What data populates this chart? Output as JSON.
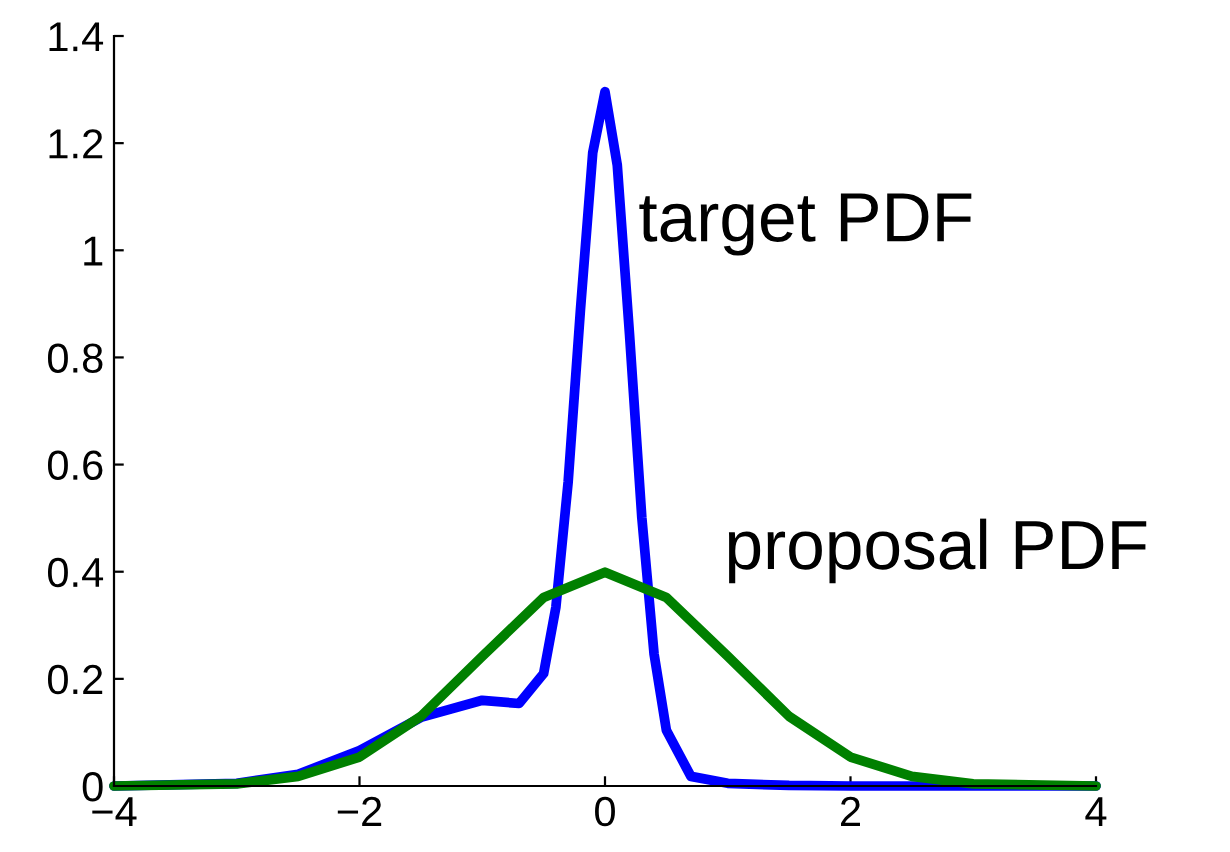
{
  "chart_data": {
    "type": "line",
    "xlim": [
      -4,
      4
    ],
    "ylim": [
      0,
      1.4
    ],
    "xticks": [
      {
        "value": -4,
        "label": "−4"
      },
      {
        "value": -2,
        "label": "−2"
      },
      0,
      2,
      4
    ],
    "yticks": [
      0,
      0.2,
      0.4,
      0.6,
      0.8,
      1,
      1.2,
      1.4
    ],
    "grid": false,
    "legend": false,
    "marker": "none",
    "line_style": "solid",
    "series": [
      {
        "name": "target PDF",
        "color": "#0000ff",
        "x": [
          -4,
          -3,
          -2.5,
          -2,
          -1.5,
          -1,
          -0.7,
          -0.5,
          -0.4,
          -0.3,
          -0.2,
          -0.1,
          0,
          0.1,
          0.2,
          0.3,
          0.4,
          0.5,
          0.7,
          1,
          1.5,
          2,
          3,
          4
        ],
        "values": [
          0,
          0.005,
          0.022,
          0.066,
          0.128,
          0.16,
          0.154,
          0.21,
          0.334,
          0.568,
          0.889,
          1.182,
          1.296,
          1.159,
          0.842,
          0.501,
          0.246,
          0.104,
          0.018,
          0.005,
          0.001,
          0,
          0,
          0
        ]
      },
      {
        "name": "proposal PDF",
        "color": "#008000",
        "x": [
          -4,
          -3,
          -2.5,
          -2,
          -1.5,
          -1,
          -0.5,
          0,
          0.5,
          1,
          1.5,
          2,
          2.5,
          3,
          4
        ],
        "values": [
          0,
          0.004,
          0.018,
          0.054,
          0.13,
          0.242,
          0.352,
          0.399,
          0.352,
          0.242,
          0.13,
          0.054,
          0.018,
          0.004,
          0
        ]
      }
    ]
  }
}
